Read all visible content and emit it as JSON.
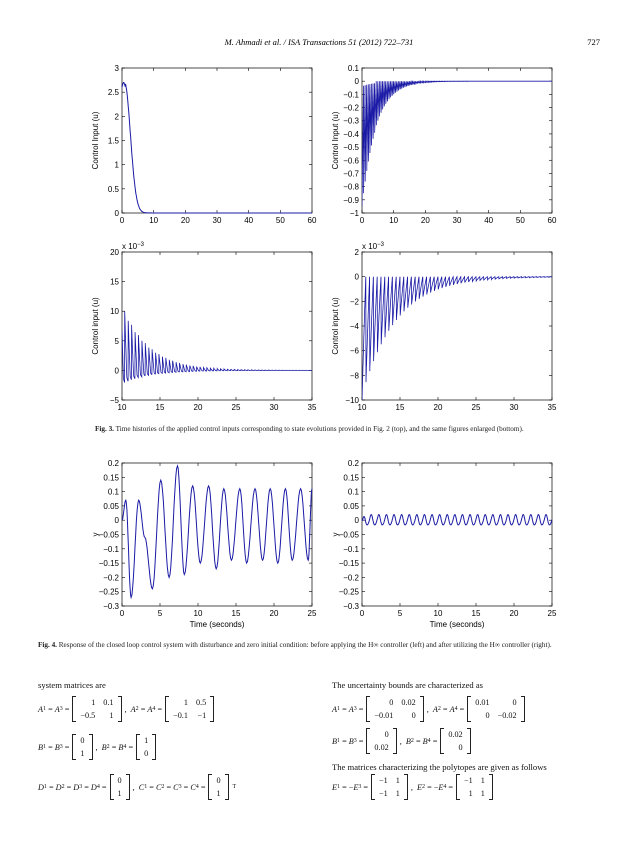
{
  "header": {
    "journal": "M. Ahmadi et al. / ISA Transactions 51 (2012) 722–731",
    "page_number": "727"
  },
  "fig3": {
    "caption_label": "Fig. 3.",
    "caption_text": "Time histories of the applied control inputs corresponding to state evolutions provided in Fig. 2 (top), and the same figures enlarged (bottom)."
  },
  "fig4": {
    "caption_label": "Fig. 4.",
    "caption_text": "Response of the closed loop control system with disturbance and zero initial condition: before applying the H∞ controller (left) and after utilizing the H∞ controller (right)."
  },
  "chart_data": [
    {
      "type": "line",
      "ylabel": "Control Input (u)",
      "xlim": [
        0,
        60
      ],
      "ylim": [
        0,
        3
      ],
      "xticks": [
        "0",
        "10",
        "20",
        "30",
        "40",
        "50",
        "60"
      ],
      "yticks": [
        "0",
        "0.5",
        "1",
        "1.5",
        "2",
        "2.5",
        "3"
      ],
      "x": [
        0,
        0.5,
        1,
        2,
        3,
        4,
        5,
        6,
        7,
        8,
        10,
        20,
        60
      ],
      "y": [
        2.6,
        2.7,
        2.55,
        2.0,
        1.3,
        0.7,
        0.3,
        0.1,
        0.04,
        0.02,
        0.01,
        0.0,
        0.0
      ]
    },
    {
      "type": "line",
      "ylabel": "Control Input (u)",
      "xlim": [
        0,
        60
      ],
      "ylim": [
        -1,
        0.1
      ],
      "xticks": [
        "0",
        "10",
        "20",
        "30",
        "40",
        "50",
        "60"
      ],
      "yticks": [
        "−1",
        "−0.9",
        "−0.8",
        "−0.7",
        "−0.6",
        "−0.5",
        "−0.4",
        "−0.3",
        "−0.2",
        "−0.1",
        "0",
        "0.1"
      ],
      "envelope_min": -0.95,
      "decay_time": 4.5,
      "oscillation_period": 0.5
    },
    {
      "type": "line",
      "ylabel": "Control input (u)",
      "multiplier_label": "x 10",
      "multiplier_exp": "−3",
      "xlim": [
        10,
        35
      ],
      "ylim": [
        -5,
        20
      ],
      "xticks": [
        "10",
        "15",
        "20",
        "25",
        "30",
        "35"
      ],
      "yticks": [
        "−5",
        "0",
        "5",
        "10",
        "15",
        "20"
      ],
      "envelope_start": 11.5,
      "decay_time": 3.5,
      "oscillation_period": 0.45
    },
    {
      "type": "line",
      "ylabel": "Control input (u)",
      "multiplier_label": "x 10",
      "multiplier_exp": "−3",
      "xlim": [
        10,
        35
      ],
      "ylim": [
        -10,
        2
      ],
      "xticks": [
        "10",
        "15",
        "20",
        "25",
        "30",
        "35"
      ],
      "yticks": [
        "−10",
        "−8",
        "−6",
        "−4",
        "−2",
        "0",
        "2"
      ],
      "envelope_start": -10,
      "decay_time": 4.5,
      "oscillation_period": 0.5
    },
    {
      "type": "line",
      "xlabel": "Time (seconds)",
      "ylabel": "y",
      "xlim": [
        0,
        25
      ],
      "ylim": [
        -0.3,
        0.2
      ],
      "xticks": [
        "0",
        "5",
        "10",
        "15",
        "20",
        "25"
      ],
      "yticks": [
        "−0.3",
        "−0.25",
        "−0.2",
        "−0.15",
        "−0.1",
        "−0.05",
        "0",
        "0.05",
        "0.1",
        "0.15",
        "0.2"
      ],
      "x": [
        0,
        0.5,
        1.2,
        2.2,
        3.0,
        4.0,
        5.1,
        6.2,
        7.3,
        8.2,
        9.3,
        10.3,
        11.4,
        12.4,
        13.4,
        14.4,
        15.5,
        16.4,
        17.5,
        18.5,
        19.5,
        20.5,
        21.5,
        22.4,
        23.5,
        24.5,
        25
      ],
      "y": [
        0,
        0.07,
        -0.27,
        0.07,
        -0.06,
        -0.24,
        0.14,
        -0.2,
        0.19,
        -0.19,
        0.12,
        -0.15,
        0.12,
        -0.17,
        0.11,
        -0.14,
        0.11,
        -0.15,
        0.11,
        -0.14,
        0.11,
        -0.15,
        0.11,
        -0.14,
        0.11,
        -0.14,
        0.11
      ]
    },
    {
      "type": "line",
      "xlabel": "Time (seconds)",
      "ylabel": "y",
      "xlim": [
        0,
        25
      ],
      "ylim": [
        -0.3,
        0.2
      ],
      "xticks": [
        "0",
        "5",
        "10",
        "15",
        "20",
        "25"
      ],
      "yticks": [
        "−0.3",
        "−0.25",
        "−0.2",
        "−0.15",
        "−0.1",
        "−0.05",
        "0",
        "0.05",
        "0.1",
        "0.15",
        "0.2"
      ],
      "amplitude": 0.018,
      "center": 0.0,
      "period": 1.0
    }
  ],
  "left_text": {
    "intro": "system matrices are",
    "A": {
      "lhs": "A",
      "sub1": "1",
      "sub2": "3",
      "m1": [
        [
          "1",
          "0.1"
        ],
        [
          "−0.5",
          "1"
        ]
      ],
      "lhs2": "A",
      "sub3": "2",
      "sub4": "4",
      "m2": [
        [
          "1",
          "0.5"
        ],
        [
          "−0.1",
          "−1"
        ]
      ]
    },
    "B": {
      "m1": [
        [
          "0"
        ],
        [
          "1"
        ]
      ],
      "m2": [
        [
          "1"
        ],
        [
          "0"
        ]
      ]
    },
    "DC": {
      "m1": [
        [
          "0"
        ],
        [
          "1"
        ]
      ],
      "m2": [
        [
          "0"
        ],
        [
          "1"
        ]
      ],
      "transpose": "T"
    }
  },
  "right_text": {
    "intro": "The uncertainty bounds are characterized as",
    "A": {
      "m1": [
        [
          "0",
          "0.02"
        ],
        [
          "−0.01",
          "0"
        ]
      ],
      "m2": [
        [
          "0.01",
          "0"
        ],
        [
          "0",
          "−0.02"
        ]
      ]
    },
    "B": {
      "m1": [
        [
          "0"
        ],
        [
          "0.02"
        ]
      ],
      "m2": [
        [
          "0.02"
        ],
        [
          "0"
        ]
      ]
    },
    "polytopes": "The matrices characterizing the polytopes are given as follows",
    "E": {
      "m1": [
        [
          "−1",
          "1"
        ],
        [
          "−1",
          "1"
        ]
      ],
      "m2": [
        [
          "−1",
          "1"
        ],
        [
          "1",
          "1"
        ]
      ]
    }
  },
  "colors": {
    "line": "#1a1aa6",
    "axis": "#000000"
  }
}
